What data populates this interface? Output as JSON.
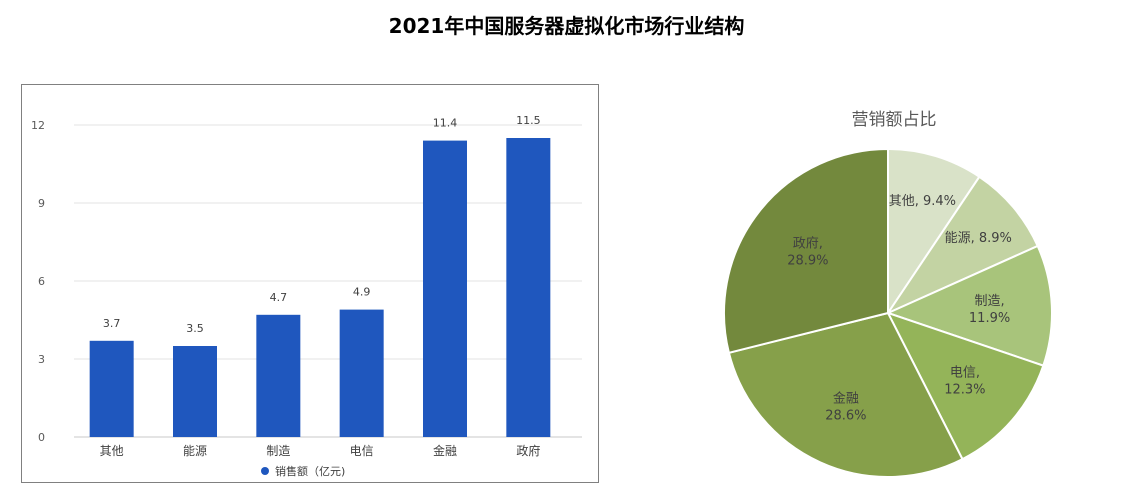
{
  "title": "2021年中国服务器虚拟化市场行业结构",
  "chart_data": [
    {
      "type": "bar",
      "categories": [
        "其他",
        "能源",
        "制造",
        "电信",
        "金融",
        "政府"
      ],
      "series": [
        {
          "name": "销售额（亿元)",
          "values": [
            3.7,
            3.5,
            4.7,
            4.9,
            11.4,
            11.5
          ],
          "color": "#1F57BE"
        }
      ],
      "data_labels": [
        "3.7",
        "3.5",
        "4.7",
        "4.9",
        "11.4",
        "11.5"
      ],
      "yticks": [
        "0",
        "3",
        "6",
        "9",
        "12"
      ],
      "ylim": [
        0,
        13
      ],
      "grid": true,
      "legend_position": "bottom",
      "xlabel": "",
      "ylabel": ""
    },
    {
      "type": "pie",
      "title": "营销额占比",
      "labels": [
        "其他",
        "能源",
        "制造",
        "电信",
        "金融",
        "政府"
      ],
      "values": [
        9.4,
        8.9,
        11.9,
        12.3,
        28.6,
        28.9
      ],
      "slice_labels": [
        {
          "name": "其他,",
          "pct": "9.4%"
        },
        {
          "name": "能源,",
          "pct": "8.9%"
        },
        {
          "name": "制造,",
          "pct": "11.9%"
        },
        {
          "name": "电信,",
          "pct": "12.3%"
        },
        {
          "name": "金融",
          "pct": "28.6%"
        },
        {
          "name": "政府,",
          "pct": "28.9%"
        }
      ],
      "colors": [
        "#D9E2C8",
        "#C3D3A3",
        "#A8C47B",
        "#94B459",
        "#86A04A",
        "#73893D"
      ]
    }
  ]
}
